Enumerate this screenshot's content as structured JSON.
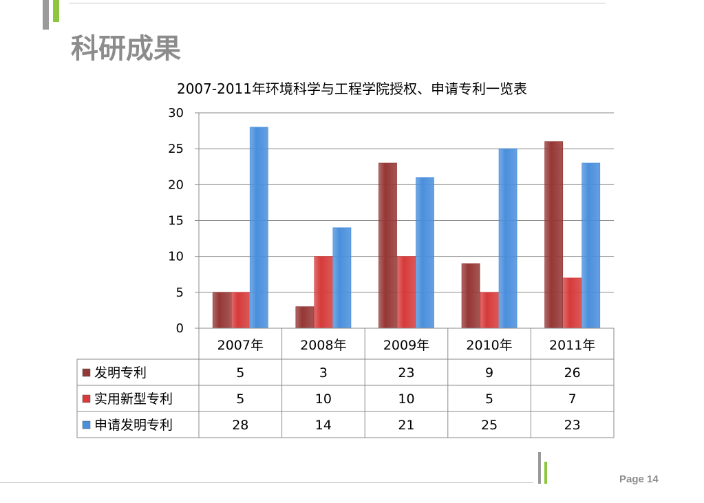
{
  "page": {
    "title": "科研成果",
    "page_label": "Page 14"
  },
  "colors": {
    "accent_green": "#8cc63f",
    "accent_gray": "#9a9a9a",
    "title_gray": "#8c8c8c"
  },
  "chart_data": {
    "type": "bar",
    "title": "2007-2011年环境科学与工程学院授权、申请专利一览表",
    "categories": [
      "2007年",
      "2008年",
      "2009年",
      "2010年",
      "2011年"
    ],
    "series": [
      {
        "name": "发明专利",
        "color": "#953735",
        "values": [
          5,
          3,
          23,
          9,
          26
        ]
      },
      {
        "name": "实用新型专利",
        "color": "#d63a3a",
        "values": [
          5,
          10,
          10,
          5,
          7
        ]
      },
      {
        "name": "申请发明专利",
        "color": "#4a8fdc",
        "values": [
          28,
          14,
          21,
          25,
          23
        ]
      }
    ],
    "y_ticks": [
      "0",
      "5",
      "10",
      "15",
      "20",
      "25",
      "30"
    ],
    "ylim": [
      0,
      30
    ],
    "grid": true,
    "data_table": true,
    "legend": "in data table"
  }
}
